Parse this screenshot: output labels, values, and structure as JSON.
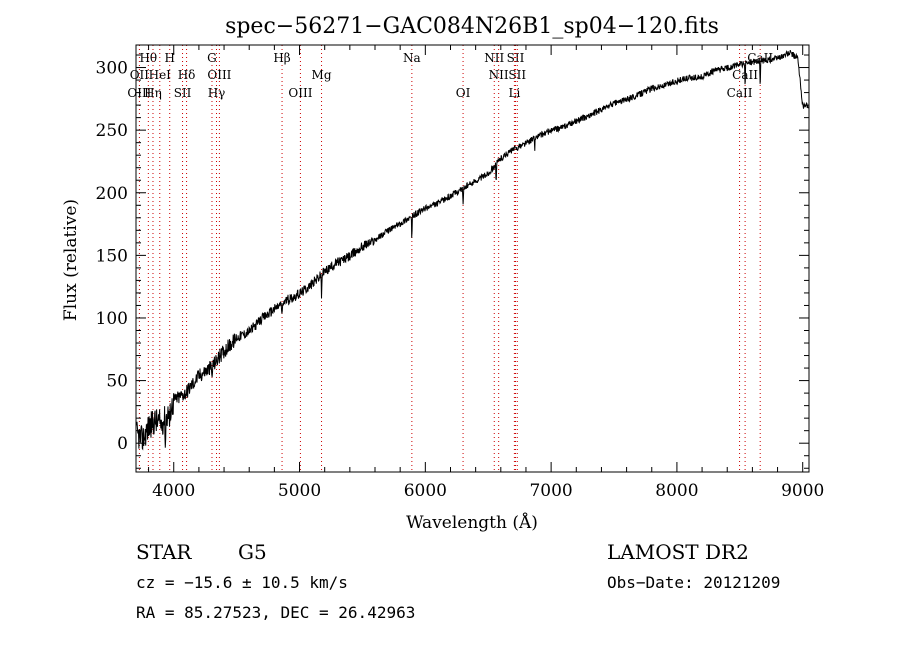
{
  "chart_data": {
    "type": "line",
    "title": "spec−56271−GAC084N26B1_sp04−120.fits",
    "xlabel": "Wavelength (Å)",
    "ylabel": "Flux (relative)",
    "xlim": [
      3700,
      9050
    ],
    "ylim": [
      -23,
      318
    ],
    "x_ticks": [
      4000,
      5000,
      6000,
      7000,
      8000,
      9000
    ],
    "x_tick_labels": [
      "4000",
      "5000",
      "6000",
      "7000",
      "8000",
      "9000"
    ],
    "y_ticks": [
      0,
      50,
      100,
      150,
      200,
      250,
      300
    ],
    "y_tick_labels": [
      "0",
      "50",
      "100",
      "150",
      "200",
      "250",
      "300"
    ],
    "grid": false,
    "series": [
      {
        "x": [
          3700,
          3750,
          3800,
          3850,
          3900,
          3950,
          4000,
          4100,
          4200,
          4300,
          4400,
          4500,
          4600,
          4700,
          4800,
          4900,
          5000,
          5100,
          5200,
          5300,
          5400,
          5500,
          5600,
          5700,
          5800,
          5900,
          6000,
          6100,
          6200,
          6300,
          6400,
          6500,
          6600,
          6700,
          6800,
          6900,
          7000,
          7100,
          7200,
          7300,
          7400,
          7500,
          7600,
          7700,
          7800,
          7900,
          8000,
          8100,
          8200,
          8300,
          8400,
          8500,
          8600,
          8700,
          8800,
          8900,
          8960,
          9000
        ],
        "y": [
          10,
          5,
          15,
          20,
          18,
          25,
          35,
          42,
          55,
          62,
          75,
          85,
          90,
          100,
          108,
          115,
          120,
          128,
          138,
          145,
          150,
          158,
          163,
          170,
          176,
          182,
          188,
          192,
          198,
          204,
          210,
          216,
          228,
          235,
          240,
          246,
          250,
          253,
          258,
          262,
          267,
          272,
          275,
          279,
          284,
          286,
          290,
          292,
          293,
          298,
          300,
          303,
          305,
          306,
          308,
          312,
          308,
          270
        ]
      }
    ],
    "line_markers": [
      {
        "name": "Hθ",
        "wavelength": 3798,
        "row": 1
      },
      {
        "name": "H",
        "wavelength": 3968,
        "row": 1
      },
      {
        "name": "G",
        "wavelength": 4304,
        "row": 1
      },
      {
        "name": "Hβ",
        "wavelength": 4861,
        "row": 1
      },
      {
        "name": "Na",
        "wavelength": 5893,
        "row": 1
      },
      {
        "name": "NII",
        "wavelength": 6548,
        "row": 1
      },
      {
        "name": "SII",
        "wavelength": 6717,
        "row": 1
      },
      {
        "name": "CaII",
        "wavelength": 8662,
        "row": 1
      },
      {
        "name": "OII",
        "wavelength": 3727,
        "row": 2
      },
      {
        "name": "HeI",
        "wavelength": 3889,
        "row": 2
      },
      {
        "name": "Hδ",
        "wavelength": 4102,
        "row": 2
      },
      {
        "name": "OIII",
        "wavelength": 4363,
        "row": 2
      },
      {
        "name": "Mg",
        "wavelength": 5175,
        "row": 2
      },
      {
        "name": "NII",
        "wavelength": 6583,
        "row": 2
      },
      {
        "name": "SII",
        "wavelength": 6731,
        "row": 2
      },
      {
        "name": "CaII",
        "wavelength": 8542,
        "row": 2
      },
      {
        "name": "OIII",
        "wavelength": 3727,
        "row": 3
      },
      {
        "name": "Hη",
        "wavelength": 3835,
        "row": 3
      },
      {
        "name": "SII",
        "wavelength": 4070,
        "row": 3
      },
      {
        "name": "Hγ",
        "wavelength": 4340,
        "row": 3
      },
      {
        "name": "OIII",
        "wavelength": 5007,
        "row": 3
      },
      {
        "name": "OI",
        "wavelength": 6300,
        "row": 3
      },
      {
        "name": "Li",
        "wavelength": 6708,
        "row": 3
      },
      {
        "name": "CaII",
        "wavelength": 8498,
        "row": 3
      }
    ],
    "marker_color": "#cc0000"
  },
  "info": {
    "object_class": "STAR",
    "subclass": "G5",
    "survey": "LAMOST DR2",
    "cz": "cz = −15.6 ± 10.5 km/s",
    "obs_date": "Obs−Date: 20121209",
    "coords": "RA =  85.27523, DEC =  26.42963"
  }
}
